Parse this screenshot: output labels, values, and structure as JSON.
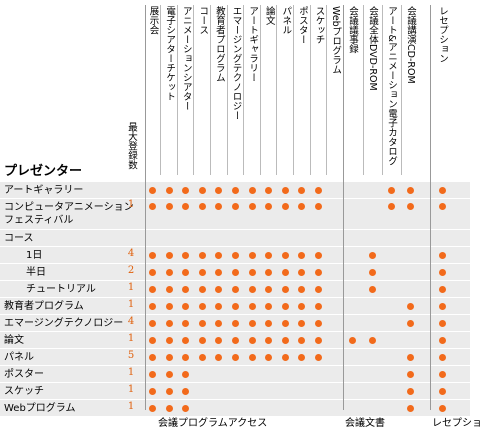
{
  "header": {
    "title": "プレゼンター",
    "count_label": "最大登録数"
  },
  "groups": [
    {
      "label": "会議プログラムアクセス",
      "columns": [
        "展示会",
        "電子シアターチケット",
        "アニメーションシアター",
        "コース",
        "教育者プログラム",
        "エマージングテクノロジー",
        "アートギャラリー",
        "論文",
        "パネル",
        "ポスター",
        "スケッチ",
        "Webプログラム"
      ]
    },
    {
      "label": "会議文書",
      "columns": [
        "会議議事録",
        "会議全体DVD-ROM",
        "アート&アニメーション電子カタログ",
        "会議講演CD-ROM"
      ]
    },
    {
      "label": "レセプション",
      "columns": [
        "レセプション"
      ]
    }
  ],
  "rows": [
    {
      "label": "アートギャラリー",
      "cells": [
        [
          true,
          true,
          true,
          true,
          true,
          true,
          true,
          true,
          true,
          true,
          true,
          false
        ],
        [
          false,
          false,
          true,
          true
        ],
        [
          true
        ]
      ]
    },
    {
      "label": "コンピュータアニメーション\nフェスティバル",
      "count": 1,
      "cells": [
        [
          true,
          true,
          true,
          true,
          true,
          true,
          true,
          true,
          true,
          true,
          true,
          false
        ],
        [
          false,
          false,
          true,
          true
        ],
        [
          true
        ]
      ]
    },
    {
      "label": "コース"
    },
    {
      "label": "1日",
      "count": 4,
      "indent": true,
      "cells": [
        [
          true,
          true,
          true,
          true,
          true,
          true,
          true,
          true,
          true,
          true,
          true,
          false
        ],
        [
          false,
          true,
          false,
          false
        ],
        [
          true
        ]
      ]
    },
    {
      "label": "半日",
      "count": 2,
      "indent": true,
      "cells": [
        [
          true,
          true,
          true,
          true,
          true,
          true,
          true,
          true,
          true,
          true,
          true,
          false
        ],
        [
          false,
          true,
          false,
          false
        ],
        [
          true
        ]
      ]
    },
    {
      "label": "チュートリアル",
      "count": 1,
      "indent": true,
      "cells": [
        [
          true,
          true,
          true,
          true,
          true,
          true,
          true,
          true,
          true,
          true,
          true,
          false
        ],
        [
          false,
          true,
          false,
          false
        ],
        [
          true
        ]
      ]
    },
    {
      "label": "教育者プログラム",
      "count": 1,
      "cells": [
        [
          true,
          true,
          true,
          true,
          true,
          true,
          true,
          true,
          true,
          true,
          true,
          false
        ],
        [
          false,
          false,
          false,
          true
        ],
        [
          true
        ]
      ]
    },
    {
      "label": "エマージングテクノロジー",
      "count": 4,
      "cells": [
        [
          true,
          true,
          true,
          true,
          true,
          true,
          true,
          true,
          true,
          true,
          true,
          false
        ],
        [
          false,
          false,
          false,
          true
        ],
        [
          true
        ]
      ]
    },
    {
      "label": "論文",
      "count": 1,
      "cells": [
        [
          true,
          true,
          true,
          true,
          true,
          true,
          true,
          true,
          true,
          true,
          true,
          false
        ],
        [
          true,
          true,
          false,
          false
        ],
        [
          true
        ]
      ]
    },
    {
      "label": "パネル",
      "count": 5,
      "cells": [
        [
          true,
          true,
          true,
          true,
          true,
          true,
          true,
          true,
          true,
          true,
          true,
          false
        ],
        [
          false,
          false,
          false,
          true
        ],
        [
          true
        ]
      ]
    },
    {
      "label": "ポスター",
      "count": 1,
      "cells": [
        [
          true,
          true,
          true,
          false,
          false,
          false,
          false,
          false,
          false,
          false,
          false,
          false
        ],
        [
          false,
          false,
          false,
          true
        ],
        [
          true
        ]
      ]
    },
    {
      "label": "スケッチ",
      "count": 1,
      "cells": [
        [
          true,
          true,
          true,
          false,
          false,
          false,
          false,
          false,
          false,
          false,
          false,
          false
        ],
        [
          false,
          false,
          false,
          true
        ],
        [
          true
        ]
      ]
    },
    {
      "label": "Webプログラム",
      "count": 1,
      "cells": [
        [
          true,
          true,
          true,
          false,
          false,
          false,
          false,
          false,
          false,
          false,
          false,
          false
        ],
        [
          false,
          false,
          false,
          true
        ],
        [
          true
        ]
      ]
    }
  ]
}
